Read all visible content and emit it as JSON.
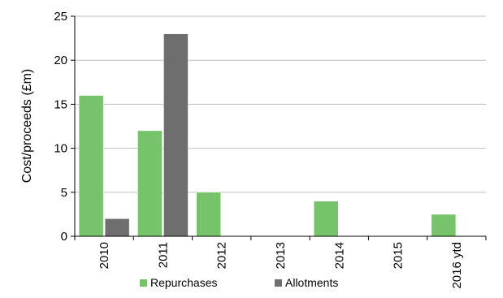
{
  "chart_data": {
    "type": "bar",
    "categories": [
      "2010",
      "2011",
      "2012",
      "2013",
      "2014",
      "2015",
      "2016 ytd"
    ],
    "series": [
      {
        "name": "Repurchases",
        "values": [
          16,
          12,
          5,
          0,
          4,
          0,
          2.5
        ],
        "color": "#77c36b"
      },
      {
        "name": "Allotments",
        "values": [
          2,
          23,
          0,
          0,
          0,
          0,
          0
        ],
        "color": "#6e6e6e"
      }
    ],
    "ylabel": "Cost/proceeds (£m)",
    "ylim": [
      0,
      25
    ],
    "yticks": [
      0,
      5,
      10,
      15,
      20,
      25
    ],
    "grid": true,
    "legend_position": "bottom"
  }
}
